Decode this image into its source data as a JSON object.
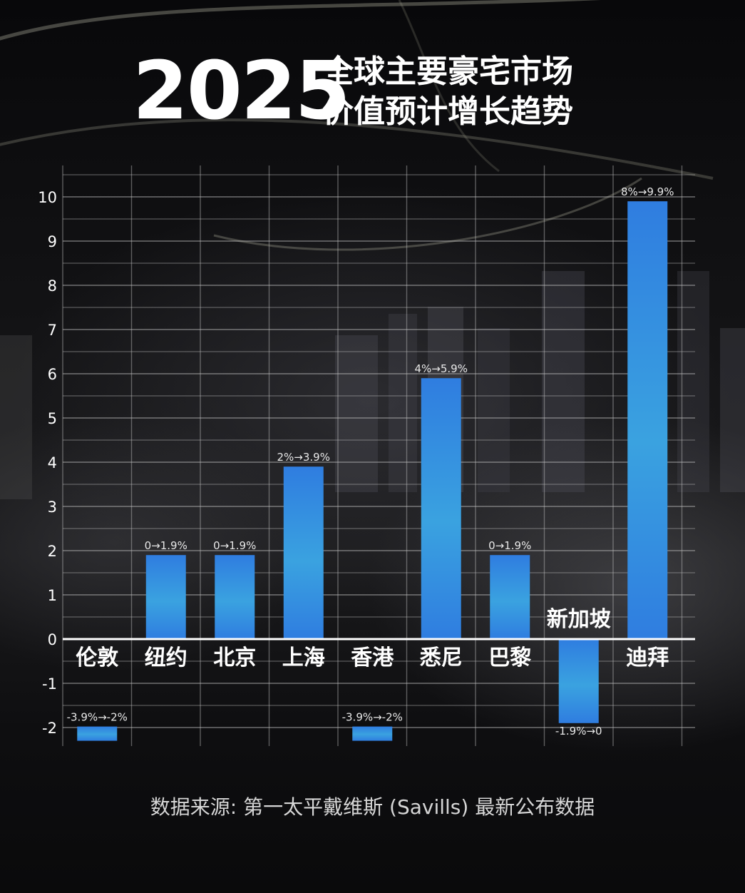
{
  "title": {
    "year": "2025",
    "line1": "全球主要豪宅市场",
    "line2": "价值预计增长趋势"
  },
  "source": "数据来源: 第一太平戴维斯 (Savills) 最新公布数据",
  "colors": {
    "bar_top": "#2f7de0",
    "bar_mid": "#3aa2e0",
    "grid": "#bfbfbf",
    "zero_line": "#ffffff"
  },
  "chart_data": {
    "type": "bar",
    "categories": [
      "伦敦",
      "纽约",
      "北京",
      "上海",
      "香港",
      "悉尼",
      "巴黎",
      "新加坡",
      "迪拜"
    ],
    "values": [
      -2.3,
      1.9,
      1.9,
      3.9,
      -2.3,
      5.9,
      1.9,
      -1.9,
      9.9
    ],
    "data_labels": [
      "-3.9%→-2%",
      "0→1.9%",
      "0→1.9%",
      "2%→3.9%",
      "-3.9%→-2%",
      "4%→5.9%",
      "0→1.9%",
      "-1.9%→0",
      "8%→9.9%"
    ],
    "yticks": [
      10,
      9,
      8,
      7,
      6,
      5,
      4,
      3,
      2,
      1,
      0,
      -1,
      -2
    ],
    "ylim": [
      -2.4,
      10.5
    ],
    "grid": true,
    "legend": "none"
  }
}
